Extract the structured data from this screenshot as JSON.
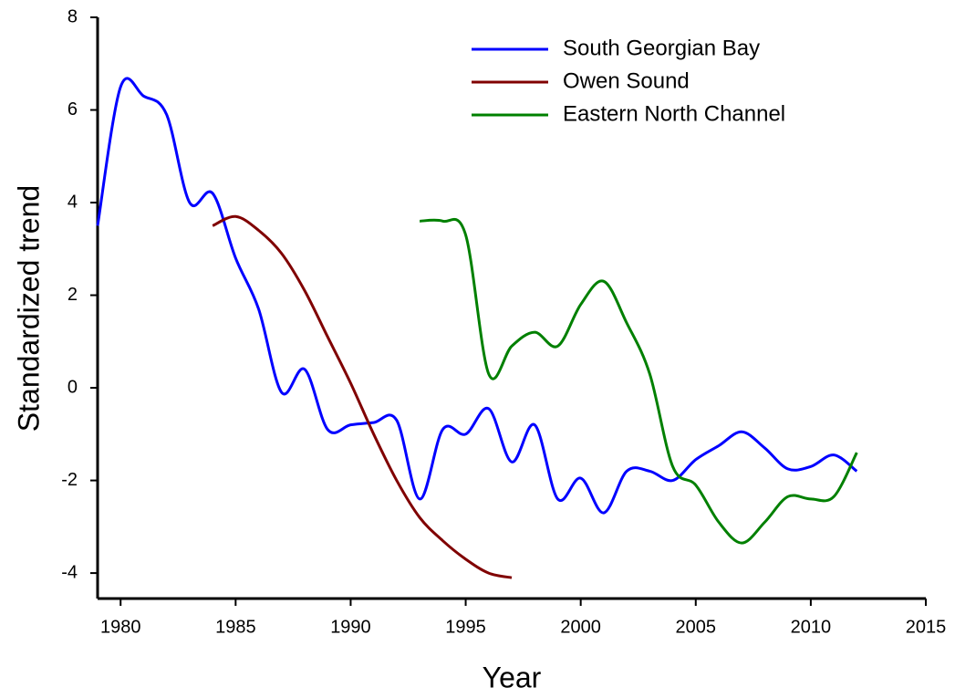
{
  "chart_data": {
    "type": "line",
    "x_label": "Year",
    "y_label": "Standardized trend",
    "legend": "top-right",
    "xlim": [
      1979,
      2015
    ],
    "xticks": [
      1980,
      1985,
      1990,
      1995,
      2000,
      2005,
      2010,
      2015
    ],
    "ylim": [
      -4.55,
      8
    ],
    "yticks": [
      -4,
      -2,
      0,
      2,
      4,
      6,
      8
    ],
    "series": [
      {
        "name": "South Georgian Bay",
        "color": "#0000ff",
        "x": [
          1979,
          1980,
          1981,
          1982,
          1983,
          1984,
          1985,
          1986,
          1987,
          1988,
          1989,
          1990,
          1991,
          1992,
          1993,
          1994,
          1995,
          1996,
          1997,
          1998,
          1999,
          2000,
          2001,
          2002,
          2003,
          2004,
          2005,
          2006,
          2007,
          2008,
          2009,
          2010,
          2011,
          2012
        ],
        "values": [
          3.5,
          6.5,
          6.3,
          5.9,
          4.0,
          4.2,
          2.8,
          1.7,
          -0.1,
          0.4,
          -0.9,
          -0.8,
          -0.75,
          -0.7,
          -2.4,
          -0.9,
          -1.0,
          -0.45,
          -1.6,
          -0.8,
          -2.4,
          -1.95,
          -2.7,
          -1.8,
          -1.8,
          -2.0,
          -1.55,
          -1.25,
          -0.95,
          -1.3,
          -1.75,
          -1.7,
          -1.45,
          -1.8
        ]
      },
      {
        "name": "Owen Sound",
        "color": "#800000",
        "x": [
          1984,
          1985,
          1986,
          1987,
          1988,
          1989,
          1990,
          1991,
          1992,
          1993,
          1994,
          1995,
          1996,
          1997
        ],
        "values": [
          3.5,
          3.7,
          3.4,
          2.9,
          2.1,
          1.1,
          0.1,
          -1.0,
          -2.0,
          -2.8,
          -3.3,
          -3.7,
          -4.0,
          -4.1
        ]
      },
      {
        "name": "Eastern North Channel",
        "color": "#008000",
        "x": [
          1993,
          1994,
          1995,
          1996,
          1997,
          1998,
          1999,
          2000,
          2001,
          2002,
          2003,
          2004,
          2005,
          2006,
          2007,
          2008,
          2009,
          2010,
          2011,
          2012
        ],
        "values": [
          3.6,
          3.6,
          3.3,
          0.3,
          0.9,
          1.2,
          0.9,
          1.8,
          2.3,
          1.4,
          0.3,
          -1.7,
          -2.1,
          -2.9,
          -3.35,
          -2.9,
          -2.35,
          -2.4,
          -2.35,
          -1.4
        ]
      }
    ]
  }
}
